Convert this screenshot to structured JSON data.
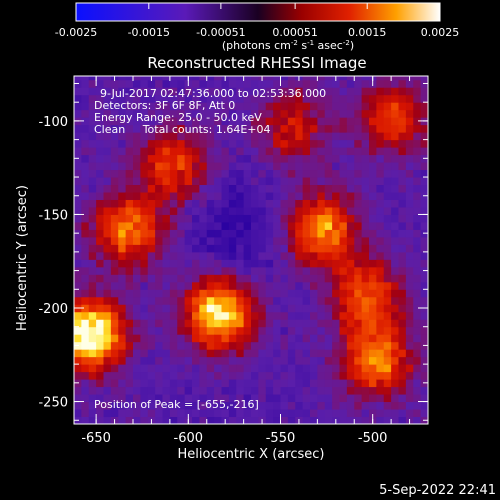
{
  "chart_data": {
    "type": "heatmap",
    "title": "Reconstructed RHESSI Image",
    "xlabel": "Heliocentric X (arcsec)",
    "ylabel": "Heliocentric Y (arcsec)",
    "x_ticks": [
      "-650",
      "-600",
      "-550",
      "-500"
    ],
    "x_tick_values": [
      -650,
      -600,
      -550,
      -500
    ],
    "y_ticks": [
      "-100",
      "-150",
      "-200",
      "-250"
    ],
    "y_tick_values": [
      -100,
      -150,
      -200,
      -250
    ],
    "xlim": [
      -662,
      -470
    ],
    "ylim": [
      -262,
      -76
    ],
    "colorbar": {
      "ticks": [
        "-0.0025",
        "-0.0015",
        "-0.00051",
        "0.00051",
        "0.0015",
        "0.0025"
      ],
      "tick_values": [
        -0.0025,
        -0.0015,
        -0.00051,
        0.00051,
        0.0015,
        0.0025
      ],
      "range": [
        -0.0025,
        0.0025
      ],
      "label": "(photons cm-2 s-1 asec-2)"
    },
    "annotations": {
      "time": "9-Jul-2017 02:47:36.000 to 02:53:36.000",
      "detectors": "Detectors: 3F 6F 8F, Att 0",
      "energy": "Energy Range: 25.0 - 50.0 keV",
      "method": "Clean     Total counts: 1.64E+04",
      "peak": "Position of Peak = [-655,-216]"
    },
    "peak": [
      -655,
      -216
    ],
    "hot_regions": [
      {
        "x": -610,
        "y": -125,
        "level": 0.55
      },
      {
        "x": -635,
        "y": -160,
        "level": 0.7
      },
      {
        "x": -655,
        "y": -216,
        "level": 1.0
      },
      {
        "x": -585,
        "y": -205,
        "level": 0.9
      },
      {
        "x": -530,
        "y": -160,
        "level": 0.75
      },
      {
        "x": -505,
        "y": -195,
        "level": 0.6
      },
      {
        "x": -500,
        "y": -230,
        "level": 0.7
      },
      {
        "x": -545,
        "y": -105,
        "level": 0.45
      },
      {
        "x": -490,
        "y": -100,
        "level": 0.55
      }
    ]
  },
  "footer_date": "5-Sep-2022 22:41"
}
